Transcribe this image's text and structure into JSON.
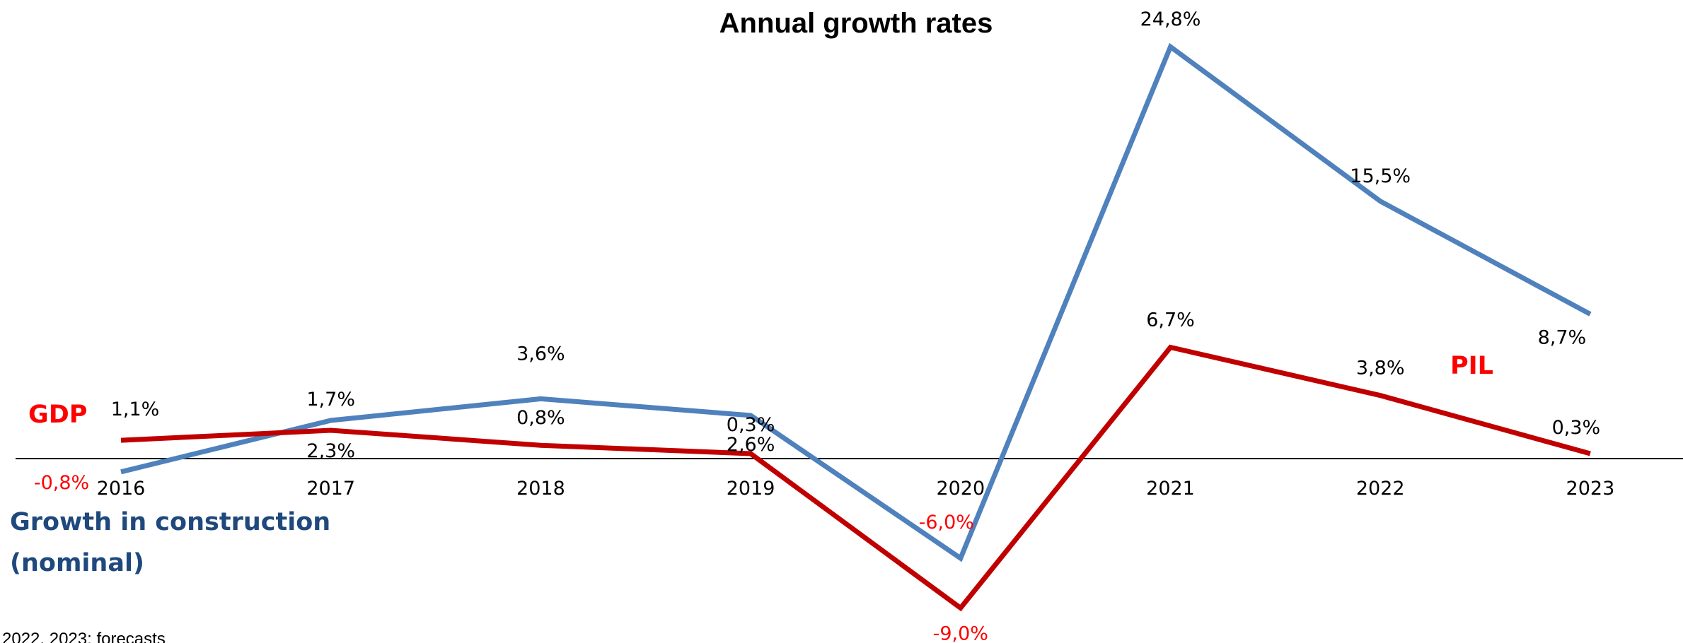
{
  "chart_data": {
    "type": "line",
    "title": "Annual growth rates",
    "x": [
      "2016",
      "2017",
      "2018",
      "2019",
      "2020",
      "2021",
      "2022",
      "2023"
    ],
    "ylim": [
      -10,
      26
    ],
    "grid": false,
    "series": [
      {
        "name": "Growth in construction (nominal)",
        "color": "#4F81BD",
        "values": [
          -0.8,
          2.3,
          3.6,
          2.6,
          -6.0,
          24.8,
          15.5,
          8.7
        ],
        "labels": [
          "-0,8%",
          "2,3%",
          "3,6%",
          "2,6%",
          "-6,0%",
          "24,8%",
          "15,5%",
          "8,7%"
        ]
      },
      {
        "name": "GDP",
        "color": "#C00000",
        "values": [
          1.1,
          1.7,
          0.8,
          0.3,
          -9.0,
          6.7,
          3.8,
          0.3
        ],
        "labels": [
          "1,1%",
          "1,7%",
          "0,8%",
          "0,3%",
          "-9,0%",
          "6,7%",
          "3,8%",
          "0,3%"
        ]
      }
    ],
    "annotations": {
      "gdp_label": "GDP",
      "pil_label": "PIL",
      "construction_label_line1": "Growth in construction",
      "construction_label_line2": "(nominal)",
      "footnote": "2022, 2023: forecasts"
    }
  },
  "colors": {
    "construction": "#4F81BD",
    "gdp": "#C00000",
    "construction_label": "#1F497D",
    "gdp_label": "#FF0000",
    "axis": "#000000"
  }
}
